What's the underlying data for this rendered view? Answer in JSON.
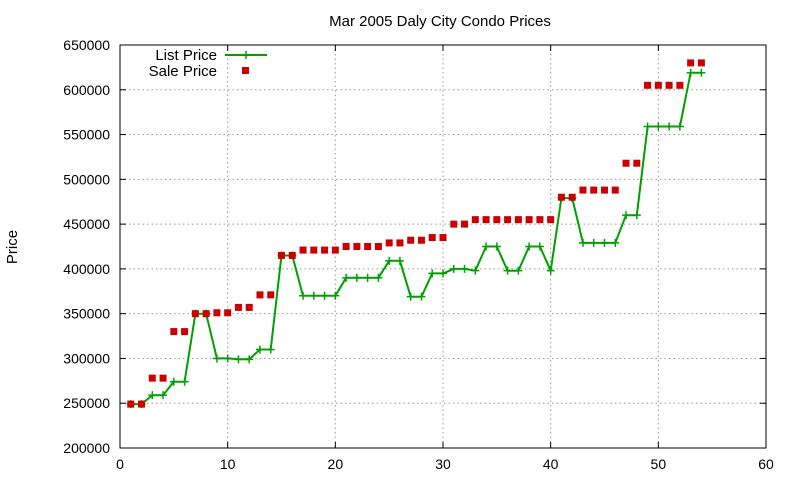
{
  "chart_data": {
    "type": "line",
    "title": "Mar 2005 Daly City Condo Prices",
    "xlabel": "",
    "ylabel": "Price",
    "xlim": [
      0,
      60
    ],
    "ylim": [
      200000,
      650000
    ],
    "x_ticks": [
      0,
      10,
      20,
      30,
      40,
      50,
      60
    ],
    "y_ticks": [
      200000,
      250000,
      300000,
      350000,
      400000,
      450000,
      500000,
      550000,
      600000,
      650000
    ],
    "grid": true,
    "legend_position": "top-left",
    "series": [
      {
        "name": "List Price",
        "style": "line+cross",
        "color": "#00a000",
        "x": [
          1,
          2,
          3,
          4,
          5,
          6,
          7,
          8,
          9,
          10,
          11,
          12,
          13,
          14,
          15,
          16,
          17,
          18,
          19,
          20,
          21,
          22,
          23,
          24,
          25,
          26,
          27,
          28,
          29,
          30,
          31,
          32,
          33,
          34,
          35,
          36,
          37,
          38,
          39,
          40,
          41,
          42,
          43,
          44,
          45,
          46,
          47,
          48,
          49,
          50,
          51,
          52,
          53,
          54
        ],
        "values": [
          249000,
          249000,
          259000,
          259000,
          274000,
          274000,
          350000,
          350000,
          300000,
          300000,
          299000,
          299000,
          310000,
          310000,
          415000,
          415000,
          370000,
          370000,
          370000,
          370000,
          390000,
          390000,
          390000,
          390000,
          409000,
          409000,
          369000,
          369000,
          395000,
          395000,
          400000,
          400000,
          398000,
          425000,
          425000,
          398000,
          398000,
          425000,
          425000,
          398000,
          479000,
          479000,
          429000,
          429000,
          429000,
          429000,
          460000,
          460000,
          559000,
          559000,
          559000,
          559000,
          619000,
          619000
        ]
      },
      {
        "name": "Sale Price",
        "style": "square",
        "color": "#cc0000",
        "x": [
          1,
          2,
          3,
          4,
          5,
          6,
          7,
          8,
          9,
          10,
          11,
          12,
          13,
          14,
          15,
          16,
          17,
          18,
          19,
          20,
          21,
          22,
          23,
          24,
          25,
          26,
          27,
          28,
          29,
          30,
          31,
          32,
          33,
          34,
          35,
          36,
          37,
          38,
          39,
          40,
          41,
          42,
          43,
          44,
          45,
          46,
          47,
          48,
          49,
          50,
          51,
          52,
          53,
          54
        ],
        "values": [
          249000,
          249000,
          278000,
          278000,
          330000,
          330000,
          350000,
          350000,
          351000,
          351000,
          357000,
          357000,
          371000,
          371000,
          415000,
          415000,
          421000,
          421000,
          421000,
          421000,
          425000,
          425000,
          425000,
          425000,
          429000,
          429000,
          432000,
          432000,
          435000,
          435000,
          450000,
          450000,
          455000,
          455000,
          455000,
          455000,
          455000,
          455000,
          455000,
          455000,
          480000,
          480000,
          488000,
          488000,
          488000,
          488000,
          518000,
          518000,
          605000,
          605000,
          605000,
          605000,
          630000,
          630000
        ]
      }
    ]
  }
}
